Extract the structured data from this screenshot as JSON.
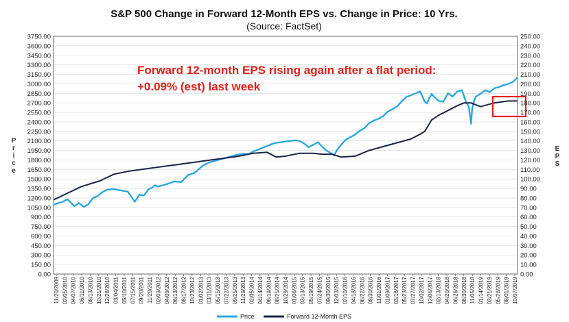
{
  "chart_data": {
    "type": "line",
    "title": "S&P 500 Change in Forward 12-Month EPS vs. Change in Price: 10 Yrs.",
    "subtitle": "(Source: FactSet)",
    "ylabel_left": "Price",
    "ylabel_right": "EPS",
    "ylim_left": [
      0,
      3750
    ],
    "ylim_right": [
      0,
      250
    ],
    "y_left_ticks": [
      "0.00",
      "150.00",
      "300.00",
      "450.00",
      "600.00",
      "750.00",
      "900.00",
      "1050.00",
      "1200.00",
      "1350.00",
      "1500.00",
      "1650.00",
      "1800.00",
      "1950.00",
      "2100.00",
      "2250.00",
      "2400.00",
      "2550.00",
      "2700.00",
      "2850.00",
      "3000.00",
      "3150.00",
      "3300.00",
      "3450.00",
      "3600.00",
      "3750.00"
    ],
    "y_right_ticks": [
      "0.00",
      "10.00",
      "20.00",
      "30.00",
      "40.00",
      "50.00",
      "60.00",
      "70.00",
      "80.00",
      "90.00",
      "100.00",
      "110.00",
      "120.00",
      "130.00",
      "140.00",
      "150.00",
      "160.00",
      "170.00",
      "180.00",
      "190.00",
      "200.00",
      "210.00",
      "220.00",
      "230.00",
      "240.00",
      "250.00"
    ],
    "x_tick_labels": [
      "11/20/2009",
      "02/05/2010",
      "04/07/2010",
      "06/11/2010",
      "08/13/2010",
      "10/21/2010",
      "12/28/2010",
      "03/04/2011",
      "05/10/2011",
      "07/15/2011",
      "09/20/2011",
      "11/29/2011",
      "02/03/2012",
      "04/09/2012",
      "06/13/2012",
      "08/17/2012",
      "10/23/2012",
      "01/02/2013",
      "03/11/2013",
      "05/15/2013",
      "07/22/2013",
      "09/25/2013",
      "11/29/2013",
      "02/05/2014",
      "04/14/2014",
      "06/19/2014",
      "08/25/2014",
      "10/29/2014",
      "01/06/2015",
      "03/13/2015",
      "05/19/2015",
      "07/24/2015",
      "09/30/2015",
      "12/03/2015",
      "02/10/2016",
      "04/18/2016",
      "06/22/2016",
      "08/30/2016",
      "11/01/2016",
      "01/09/2017",
      "03/16/2017",
      "05/23/2017",
      "07/27/2017",
      "10/02/2017",
      "12/06/2017",
      "02/13/2018",
      "04/20/2018",
      "06/26/2018",
      "08/30/2018",
      "11/05/2018",
      "01/14/2019",
      "03/21/2019",
      "05/28/2019",
      "08/01/2019",
      "10/07/2019"
    ],
    "x_range": [
      0,
      10
    ],
    "series": [
      {
        "name": "Price",
        "color": "#2BA7DF",
        "axis": "left",
        "x": [
          0,
          0.1,
          0.2,
          0.3,
          0.45,
          0.55,
          0.65,
          0.75,
          0.85,
          0.95,
          1.05,
          1.15,
          1.3,
          1.45,
          1.6,
          1.75,
          1.85,
          1.95,
          2.05,
          2.12,
          2.18,
          2.25,
          2.35,
          2.45,
          2.6,
          2.75,
          2.9,
          3.05,
          3.2,
          3.35,
          3.5,
          3.65,
          3.8,
          3.95,
          4.1,
          4.2,
          4.3,
          4.4,
          4.5,
          4.6,
          4.7,
          4.8,
          4.9,
          5.0,
          5.1,
          5.2,
          5.3,
          5.4,
          5.5,
          5.6,
          5.7,
          5.8,
          5.9,
          6.0,
          6.05,
          6.1,
          6.2,
          6.3,
          6.4,
          6.5,
          6.6,
          6.7,
          6.8,
          6.9,
          7.0,
          7.1,
          7.2,
          7.3,
          7.4,
          7.5,
          7.6,
          7.7,
          7.8,
          7.9,
          8.0,
          8.05,
          8.1,
          8.15,
          8.2,
          8.3,
          8.4,
          8.5,
          8.6,
          8.7,
          8.8,
          8.9,
          8.95,
          9.0,
          9.02,
          9.05,
          9.1,
          9.2,
          9.3,
          9.4,
          9.5,
          9.6,
          9.7,
          9.8,
          9.9,
          10.0
        ],
        "values": [
          1090,
          1120,
          1140,
          1180,
          1070,
          1120,
          1060,
          1100,
          1200,
          1230,
          1290,
          1330,
          1340,
          1320,
          1300,
          1140,
          1250,
          1240,
          1340,
          1360,
          1400,
          1380,
          1400,
          1420,
          1460,
          1450,
          1560,
          1600,
          1700,
          1760,
          1790,
          1820,
          1850,
          1880,
          1900,
          1890,
          1930,
          1960,
          1990,
          2020,
          2050,
          2070,
          2080,
          2090,
          2100,
          2110,
          2100,
          2060,
          2000,
          2040,
          2080,
          2000,
          1940,
          1900,
          1870,
          1950,
          2040,
          2120,
          2160,
          2200,
          2260,
          2300,
          2380,
          2420,
          2450,
          2490,
          2560,
          2600,
          2640,
          2720,
          2790,
          2820,
          2850,
          2880,
          2720,
          2690,
          2780,
          2840,
          2800,
          2730,
          2720,
          2850,
          2800,
          2880,
          2900,
          2700,
          2640,
          2370,
          2600,
          2700,
          2800,
          2840,
          2900,
          2870,
          2930,
          2950,
          2980,
          3000,
          3030,
          3100
        ]
      },
      {
        "name": "Forward 12-Month EPS",
        "color": "#1A2448",
        "axis": "right",
        "x": [
          0,
          0.3,
          0.6,
          1.0,
          1.3,
          1.6,
          1.9,
          2.2,
          2.5,
          2.8,
          3.1,
          3.4,
          3.7,
          4.0,
          4.3,
          4.6,
          4.8,
          5.0,
          5.3,
          5.6,
          5.8,
          6.0,
          6.2,
          6.5,
          6.8,
          7.1,
          7.4,
          7.7,
          7.9,
          8.0,
          8.15,
          8.3,
          8.5,
          8.7,
          8.85,
          9.0,
          9.2,
          9.5,
          9.8,
          10.0
        ],
        "values": [
          78,
          85,
          92,
          98,
          105,
          108,
          110,
          112,
          114,
          116,
          118,
          120,
          122,
          124,
          127,
          128,
          123,
          124,
          127,
          127,
          126,
          126,
          123,
          124,
          130,
          134,
          138,
          142,
          147,
          150,
          162,
          167,
          172,
          177,
          180,
          180,
          176,
          180,
          182,
          182
        ]
      }
    ],
    "legend": [
      "Price",
      "Forward 12-Month EPS"
    ],
    "legend_position": "bottom-center",
    "annotation": {
      "line1": "Forward 12-month EPS rising again after a flat period:",
      "line2": "+0.09% (est) last week",
      "color": "#E0201A"
    }
  }
}
